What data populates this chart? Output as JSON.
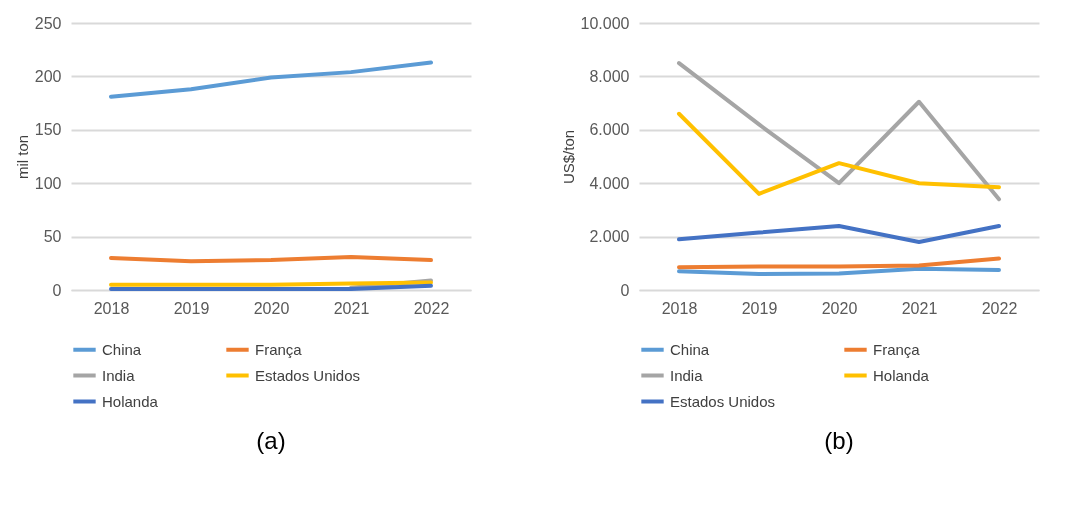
{
  "chart_data": [
    {
      "type": "line",
      "title": "(a)",
      "ylabel": "mil ton",
      "categories": [
        "2018",
        "2019",
        "2020",
        "2021",
        "2022"
      ],
      "ylim": [
        0,
        250
      ],
      "yticks": [
        0,
        50,
        100,
        150,
        200,
        250
      ],
      "grid": "y",
      "legend": "bottom",
      "line_style": "solid",
      "marker": "none",
      "series": [
        {
          "name": "China",
          "color": "#5b9bd5",
          "values": [
            181,
            188,
            199,
            204,
            213
          ]
        },
        {
          "name": "França",
          "color": "#ed7d31",
          "values": [
            30,
            27,
            28,
            31,
            28
          ]
        },
        {
          "name": "India",
          "color": "#a5a5a5",
          "values": [
            null,
            null,
            null,
            2,
            9
          ]
        },
        {
          "name": "Estados Unidos",
          "color": "#ffc000",
          "values": [
            5,
            5,
            5,
            6,
            7
          ]
        },
        {
          "name": "Holanda",
          "color": "#4472c4",
          "values": [
            1,
            1,
            1,
            1,
            4
          ]
        }
      ]
    },
    {
      "type": "line",
      "title": "(b)",
      "ylabel": "US$/ton",
      "categories": [
        "2018",
        "2019",
        "2020",
        "2021",
        "2022"
      ],
      "ylim": [
        0,
        10000
      ],
      "yticks": [
        0,
        {
          "value": 2000,
          "label": "2.000"
        },
        {
          "value": 4000,
          "label": "4.000"
        },
        {
          "value": 6000,
          "label": "6.000"
        },
        {
          "value": 8000,
          "label": "8.000"
        },
        {
          "value": 10000,
          "label": "10.000"
        }
      ],
      "grid": "y",
      "legend": "bottom",
      "line_style": "solid",
      "marker": "none",
      "series": [
        {
          "name": "China",
          "color": "#5b9bd5",
          "values": [
            700,
            600,
            620,
            800,
            750
          ]
        },
        {
          "name": "França",
          "color": "#ed7d31",
          "values": [
            850,
            880,
            880,
            920,
            1180
          ]
        },
        {
          "name": "India",
          "color": "#a5a5a5",
          "values": [
            8500,
            6200,
            4000,
            7050,
            3400
          ]
        },
        {
          "name": "Holanda",
          "color": "#ffc000",
          "values": [
            6600,
            3600,
            4750,
            4000,
            3850
          ]
        },
        {
          "name": "Estados Unidos",
          "color": "#4472c4",
          "values": [
            1900,
            2150,
            2400,
            1800,
            2400
          ]
        }
      ]
    }
  ]
}
